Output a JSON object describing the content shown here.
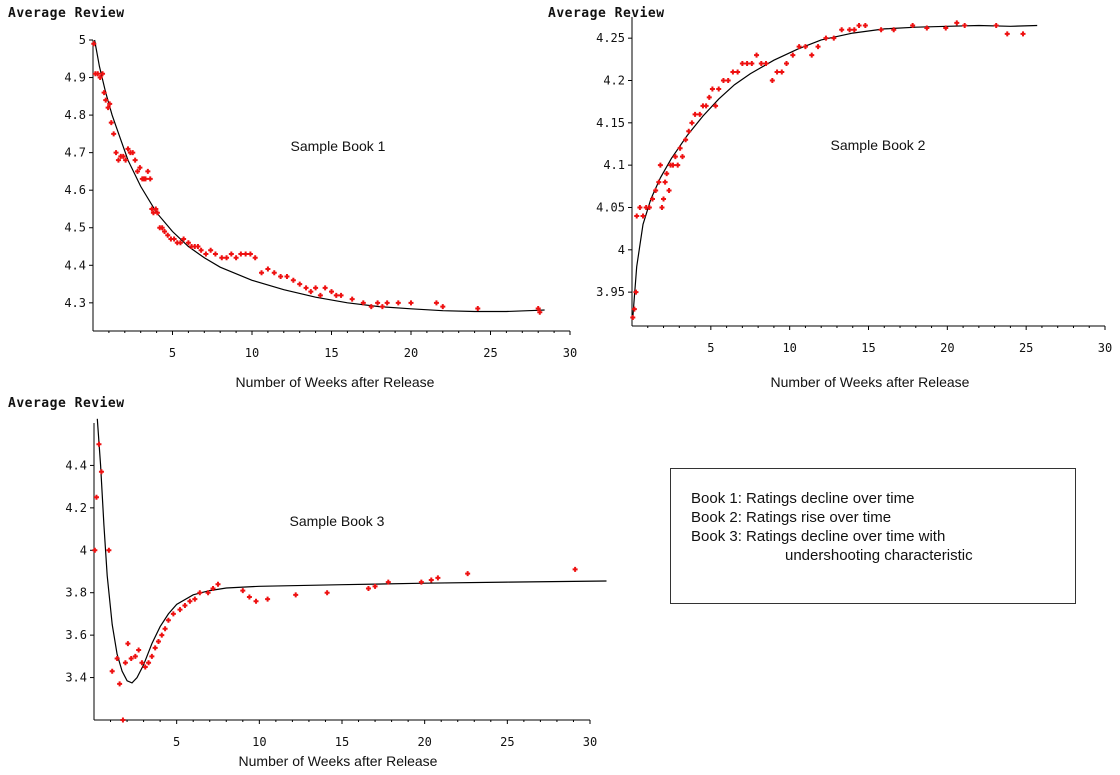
{
  "legend": {
    "line1": "Book 1:  Ratings decline over time",
    "line2": "Book 2:  Ratings rise over time",
    "line3": "Book 3:  Ratings decline over time with",
    "line4": "undershooting characteristic"
  },
  "chart_data": [
    {
      "type": "scatter",
      "inner_label": "Sample Book 1",
      "ylabel": "Average Review",
      "xlabel": "Number of Weeks after Release",
      "xlim": [
        0,
        30
      ],
      "ylim": [
        4.225,
        5.0
      ],
      "xticks": [
        5,
        10,
        15,
        20,
        25,
        30
      ],
      "yticks": [
        4.3,
        4.4,
        4.5,
        4.6,
        4.7,
        4.8,
        4.9,
        5
      ],
      "ytick_labels": [
        "4.3",
        "4.4",
        "4.5",
        "4.6",
        "4.7",
        "4.8",
        "4.9",
        "5"
      ],
      "curve_label": "fitted curve",
      "series_label": "observed ratings",
      "fit_curve": [
        [
          0.1,
          5.0
        ],
        [
          0.4,
          4.93
        ],
        [
          0.8,
          4.86
        ],
        [
          1.2,
          4.8
        ],
        [
          1.7,
          4.74
        ],
        [
          2.2,
          4.68
        ],
        [
          3,
          4.61
        ],
        [
          4,
          4.54
        ],
        [
          5,
          4.49
        ],
        [
          6,
          4.45
        ],
        [
          7,
          4.42
        ],
        [
          8,
          4.395
        ],
        [
          10,
          4.36
        ],
        [
          12,
          4.335
        ],
        [
          14,
          4.315
        ],
        [
          16,
          4.3
        ],
        [
          18,
          4.29
        ],
        [
          20,
          4.284
        ],
        [
          22,
          4.279
        ],
        [
          24,
          4.277
        ],
        [
          26,
          4.277
        ],
        [
          28,
          4.28
        ],
        [
          28.4,
          4.281
        ]
      ],
      "points": [
        [
          0.05,
          4.99
        ],
        [
          0.15,
          4.91
        ],
        [
          0.3,
          4.91
        ],
        [
          0.45,
          4.9
        ],
        [
          0.6,
          4.91
        ],
        [
          0.7,
          4.86
        ],
        [
          0.8,
          4.84
        ],
        [
          0.95,
          4.82
        ],
        [
          1.05,
          4.83
        ],
        [
          1.15,
          4.78
        ],
        [
          1.3,
          4.75
        ],
        [
          1.45,
          4.7
        ],
        [
          1.6,
          4.68
        ],
        [
          1.75,
          4.69
        ],
        [
          1.9,
          4.69
        ],
        [
          2.05,
          4.68
        ],
        [
          2.2,
          4.71
        ],
        [
          2.35,
          4.7
        ],
        [
          2.5,
          4.7
        ],
        [
          2.65,
          4.68
        ],
        [
          2.8,
          4.65
        ],
        [
          2.95,
          4.66
        ],
        [
          3.1,
          4.63
        ],
        [
          3.2,
          4.63
        ],
        [
          3.3,
          4.63
        ],
        [
          3.45,
          4.65
        ],
        [
          3.6,
          4.63
        ],
        [
          3.7,
          4.55
        ],
        [
          3.8,
          4.54
        ],
        [
          3.95,
          4.55
        ],
        [
          4.05,
          4.54
        ],
        [
          4.2,
          4.5
        ],
        [
          4.35,
          4.5
        ],
        [
          4.5,
          4.49
        ],
        [
          4.7,
          4.48
        ],
        [
          4.9,
          4.47
        ],
        [
          5.1,
          4.47
        ],
        [
          5.3,
          4.46
        ],
        [
          5.5,
          4.46
        ],
        [
          5.7,
          4.47
        ],
        [
          6,
          4.46
        ],
        [
          6.2,
          4.45
        ],
        [
          6.4,
          4.45
        ],
        [
          6.6,
          4.45
        ],
        [
          6.8,
          4.44
        ],
        [
          7.1,
          4.43
        ],
        [
          7.4,
          4.44
        ],
        [
          7.7,
          4.43
        ],
        [
          8.1,
          4.42
        ],
        [
          8.4,
          4.42
        ],
        [
          8.7,
          4.43
        ],
        [
          9,
          4.42
        ],
        [
          9.3,
          4.43
        ],
        [
          9.6,
          4.43
        ],
        [
          9.9,
          4.43
        ],
        [
          10.2,
          4.42
        ],
        [
          10.6,
          4.38
        ],
        [
          11,
          4.39
        ],
        [
          11.4,
          4.38
        ],
        [
          11.8,
          4.37
        ],
        [
          12.2,
          4.37
        ],
        [
          12.6,
          4.36
        ],
        [
          13,
          4.35
        ],
        [
          13.4,
          4.34
        ],
        [
          13.7,
          4.33
        ],
        [
          14,
          4.34
        ],
        [
          14.3,
          4.32
        ],
        [
          14.6,
          4.34
        ],
        [
          15,
          4.33
        ],
        [
          15.3,
          4.32
        ],
        [
          15.6,
          4.32
        ],
        [
          16.3,
          4.31
        ],
        [
          17,
          4.3
        ],
        [
          17.5,
          4.29
        ],
        [
          17.9,
          4.3
        ],
        [
          18.2,
          4.29
        ],
        [
          18.5,
          4.3
        ],
        [
          19.2,
          4.3
        ],
        [
          20,
          4.3
        ],
        [
          21.6,
          4.3
        ],
        [
          22,
          4.29
        ],
        [
          24.2,
          4.285
        ],
        [
          28,
          4.285
        ],
        [
          28.1,
          4.275
        ]
      ]
    },
    {
      "type": "scatter",
      "inner_label": "Sample Book 2",
      "ylabel": "Average Review",
      "xlabel": "Number of Weeks after Release",
      "xlim": [
        0,
        30
      ],
      "ylim": [
        3.91,
        4.275
      ],
      "xticks": [
        5,
        10,
        15,
        20,
        25,
        30
      ],
      "yticks": [
        3.95,
        4.0,
        4.05,
        4.1,
        4.15,
        4.2,
        4.25
      ],
      "ytick_labels": [
        "3.95",
        "4",
        "4.05",
        "4.1",
        "4.15",
        "4.2",
        "4.25"
      ],
      "curve_label": "fitted curve",
      "series_label": "observed ratings",
      "fit_curve": [
        [
          0.05,
          3.92
        ],
        [
          0.3,
          3.98
        ],
        [
          0.7,
          4.03
        ],
        [
          1.2,
          4.06
        ],
        [
          1.8,
          4.085
        ],
        [
          2.5,
          4.108
        ],
        [
          3.5,
          4.135
        ],
        [
          4.5,
          4.158
        ],
        [
          5.5,
          4.178
        ],
        [
          6.5,
          4.195
        ],
        [
          7.5,
          4.208
        ],
        [
          9,
          4.224
        ],
        [
          10.5,
          4.237
        ],
        [
          12,
          4.248
        ],
        [
          14,
          4.256
        ],
        [
          16,
          4.261
        ],
        [
          18,
          4.263
        ],
        [
          20,
          4.264
        ],
        [
          22,
          4.265
        ],
        [
          24,
          4.264
        ],
        [
          25.7,
          4.265
        ]
      ],
      "points": [
        [
          0.05,
          3.92
        ],
        [
          0.15,
          3.93
        ],
        [
          0.25,
          3.95
        ],
        [
          0.3,
          4.04
        ],
        [
          0.5,
          4.05
        ],
        [
          0.7,
          4.04
        ],
        [
          0.9,
          4.05
        ],
        [
          1.1,
          4.05
        ],
        [
          1.3,
          4.06
        ],
        [
          1.5,
          4.07
        ],
        [
          1.7,
          4.08
        ],
        [
          1.8,
          4.1
        ],
        [
          1.9,
          4.05
        ],
        [
          2.0,
          4.06
        ],
        [
          2.1,
          4.08
        ],
        [
          2.2,
          4.09
        ],
        [
          2.35,
          4.07
        ],
        [
          2.45,
          4.1
        ],
        [
          2.6,
          4.1
        ],
        [
          2.75,
          4.11
        ],
        [
          2.9,
          4.1
        ],
        [
          3.05,
          4.12
        ],
        [
          3.2,
          4.11
        ],
        [
          3.4,
          4.13
        ],
        [
          3.6,
          4.14
        ],
        [
          3.8,
          4.15
        ],
        [
          4,
          4.16
        ],
        [
          4.3,
          4.16
        ],
        [
          4.5,
          4.17
        ],
        [
          4.7,
          4.17
        ],
        [
          4.9,
          4.18
        ],
        [
          5.1,
          4.19
        ],
        [
          5.3,
          4.17
        ],
        [
          5.5,
          4.19
        ],
        [
          5.8,
          4.2
        ],
        [
          6.1,
          4.2
        ],
        [
          6.4,
          4.21
        ],
        [
          6.7,
          4.21
        ],
        [
          7,
          4.22
        ],
        [
          7.3,
          4.22
        ],
        [
          7.6,
          4.22
        ],
        [
          7.9,
          4.23
        ],
        [
          8.2,
          4.22
        ],
        [
          8.5,
          4.22
        ],
        [
          8.9,
          4.2
        ],
        [
          9.2,
          4.21
        ],
        [
          9.5,
          4.21
        ],
        [
          9.8,
          4.22
        ],
        [
          10.2,
          4.23
        ],
        [
          10.6,
          4.24
        ],
        [
          11,
          4.24
        ],
        [
          11.4,
          4.23
        ],
        [
          11.8,
          4.24
        ],
        [
          12.3,
          4.25
        ],
        [
          12.8,
          4.25
        ],
        [
          13.3,
          4.26
        ],
        [
          13.8,
          4.26
        ],
        [
          14.1,
          4.26
        ],
        [
          14.4,
          4.265
        ],
        [
          14.8,
          4.265
        ],
        [
          15.8,
          4.26
        ],
        [
          16.6,
          4.26
        ],
        [
          17.8,
          4.265
        ],
        [
          18.7,
          4.262
        ],
        [
          19.9,
          4.262
        ],
        [
          20.6,
          4.268
        ],
        [
          21.1,
          4.265
        ],
        [
          23.1,
          4.265
        ],
        [
          23.8,
          4.255
        ],
        [
          24.8,
          4.255
        ]
      ]
    },
    {
      "type": "scatter",
      "inner_label": "Sample Book 3",
      "ylabel": "Average Review",
      "xlabel": "Number of Weeks after Release",
      "xlim": [
        0,
        30
      ],
      "ylim": [
        3.2,
        4.6
      ],
      "xticks": [
        5,
        10,
        15,
        20,
        25,
        30
      ],
      "yticks": [
        3.4,
        3.6,
        3.8,
        4.0,
        4.2,
        4.4
      ],
      "ytick_labels": [
        "3.4",
        "3.6",
        "3.8",
        "4",
        "4.2",
        "4.4"
      ],
      "curve_label": "fitted curve",
      "series_label": "observed ratings",
      "fit_curve": [
        [
          0.2,
          4.62
        ],
        [
          0.4,
          4.4
        ],
        [
          0.6,
          4.12
        ],
        [
          0.8,
          3.88
        ],
        [
          1.1,
          3.65
        ],
        [
          1.4,
          3.51
        ],
        [
          1.7,
          3.43
        ],
        [
          2.0,
          3.385
        ],
        [
          2.3,
          3.375
        ],
        [
          2.6,
          3.4
        ],
        [
          3.0,
          3.46
        ],
        [
          3.5,
          3.56
        ],
        [
          4.0,
          3.64
        ],
        [
          4.5,
          3.7
        ],
        [
          5,
          3.745
        ],
        [
          6,
          3.79
        ],
        [
          7,
          3.81
        ],
        [
          8,
          3.822
        ],
        [
          10,
          3.83
        ],
        [
          15,
          3.838
        ],
        [
          20,
          3.845
        ],
        [
          25,
          3.85
        ],
        [
          31,
          3.855
        ]
      ],
      "points": [
        [
          0.05,
          4.0
        ],
        [
          0.15,
          4.25
        ],
        [
          0.3,
          4.5
        ],
        [
          0.45,
          4.37
        ],
        [
          0.9,
          4.0
        ],
        [
          1.1,
          3.43
        ],
        [
          1.4,
          3.49
        ],
        [
          1.55,
          3.37
        ],
        [
          1.75,
          3.2
        ],
        [
          1.9,
          3.47
        ],
        [
          2.05,
          3.56
        ],
        [
          2.25,
          3.49
        ],
        [
          2.5,
          3.5
        ],
        [
          2.7,
          3.53
        ],
        [
          2.9,
          3.47
        ],
        [
          3.1,
          3.45
        ],
        [
          3.3,
          3.47
        ],
        [
          3.5,
          3.5
        ],
        [
          3.7,
          3.54
        ],
        [
          3.9,
          3.57
        ],
        [
          4.1,
          3.6
        ],
        [
          4.3,
          3.63
        ],
        [
          4.5,
          3.67
        ],
        [
          4.8,
          3.7
        ],
        [
          5.2,
          3.72
        ],
        [
          5.5,
          3.74
        ],
        [
          5.8,
          3.76
        ],
        [
          6.1,
          3.77
        ],
        [
          6.4,
          3.8
        ],
        [
          6.9,
          3.8
        ],
        [
          7.2,
          3.82
        ],
        [
          7.5,
          3.84
        ],
        [
          9,
          3.81
        ],
        [
          9.4,
          3.78
        ],
        [
          9.8,
          3.76
        ],
        [
          10.5,
          3.77
        ],
        [
          12.2,
          3.79
        ],
        [
          14.1,
          3.8
        ],
        [
          16.6,
          3.82
        ],
        [
          17.0,
          3.83
        ],
        [
          17.8,
          3.85
        ],
        [
          19.8,
          3.85
        ],
        [
          20.4,
          3.86
        ],
        [
          20.8,
          3.87
        ],
        [
          22.6,
          3.89
        ],
        [
          29.1,
          3.91
        ]
      ]
    }
  ]
}
